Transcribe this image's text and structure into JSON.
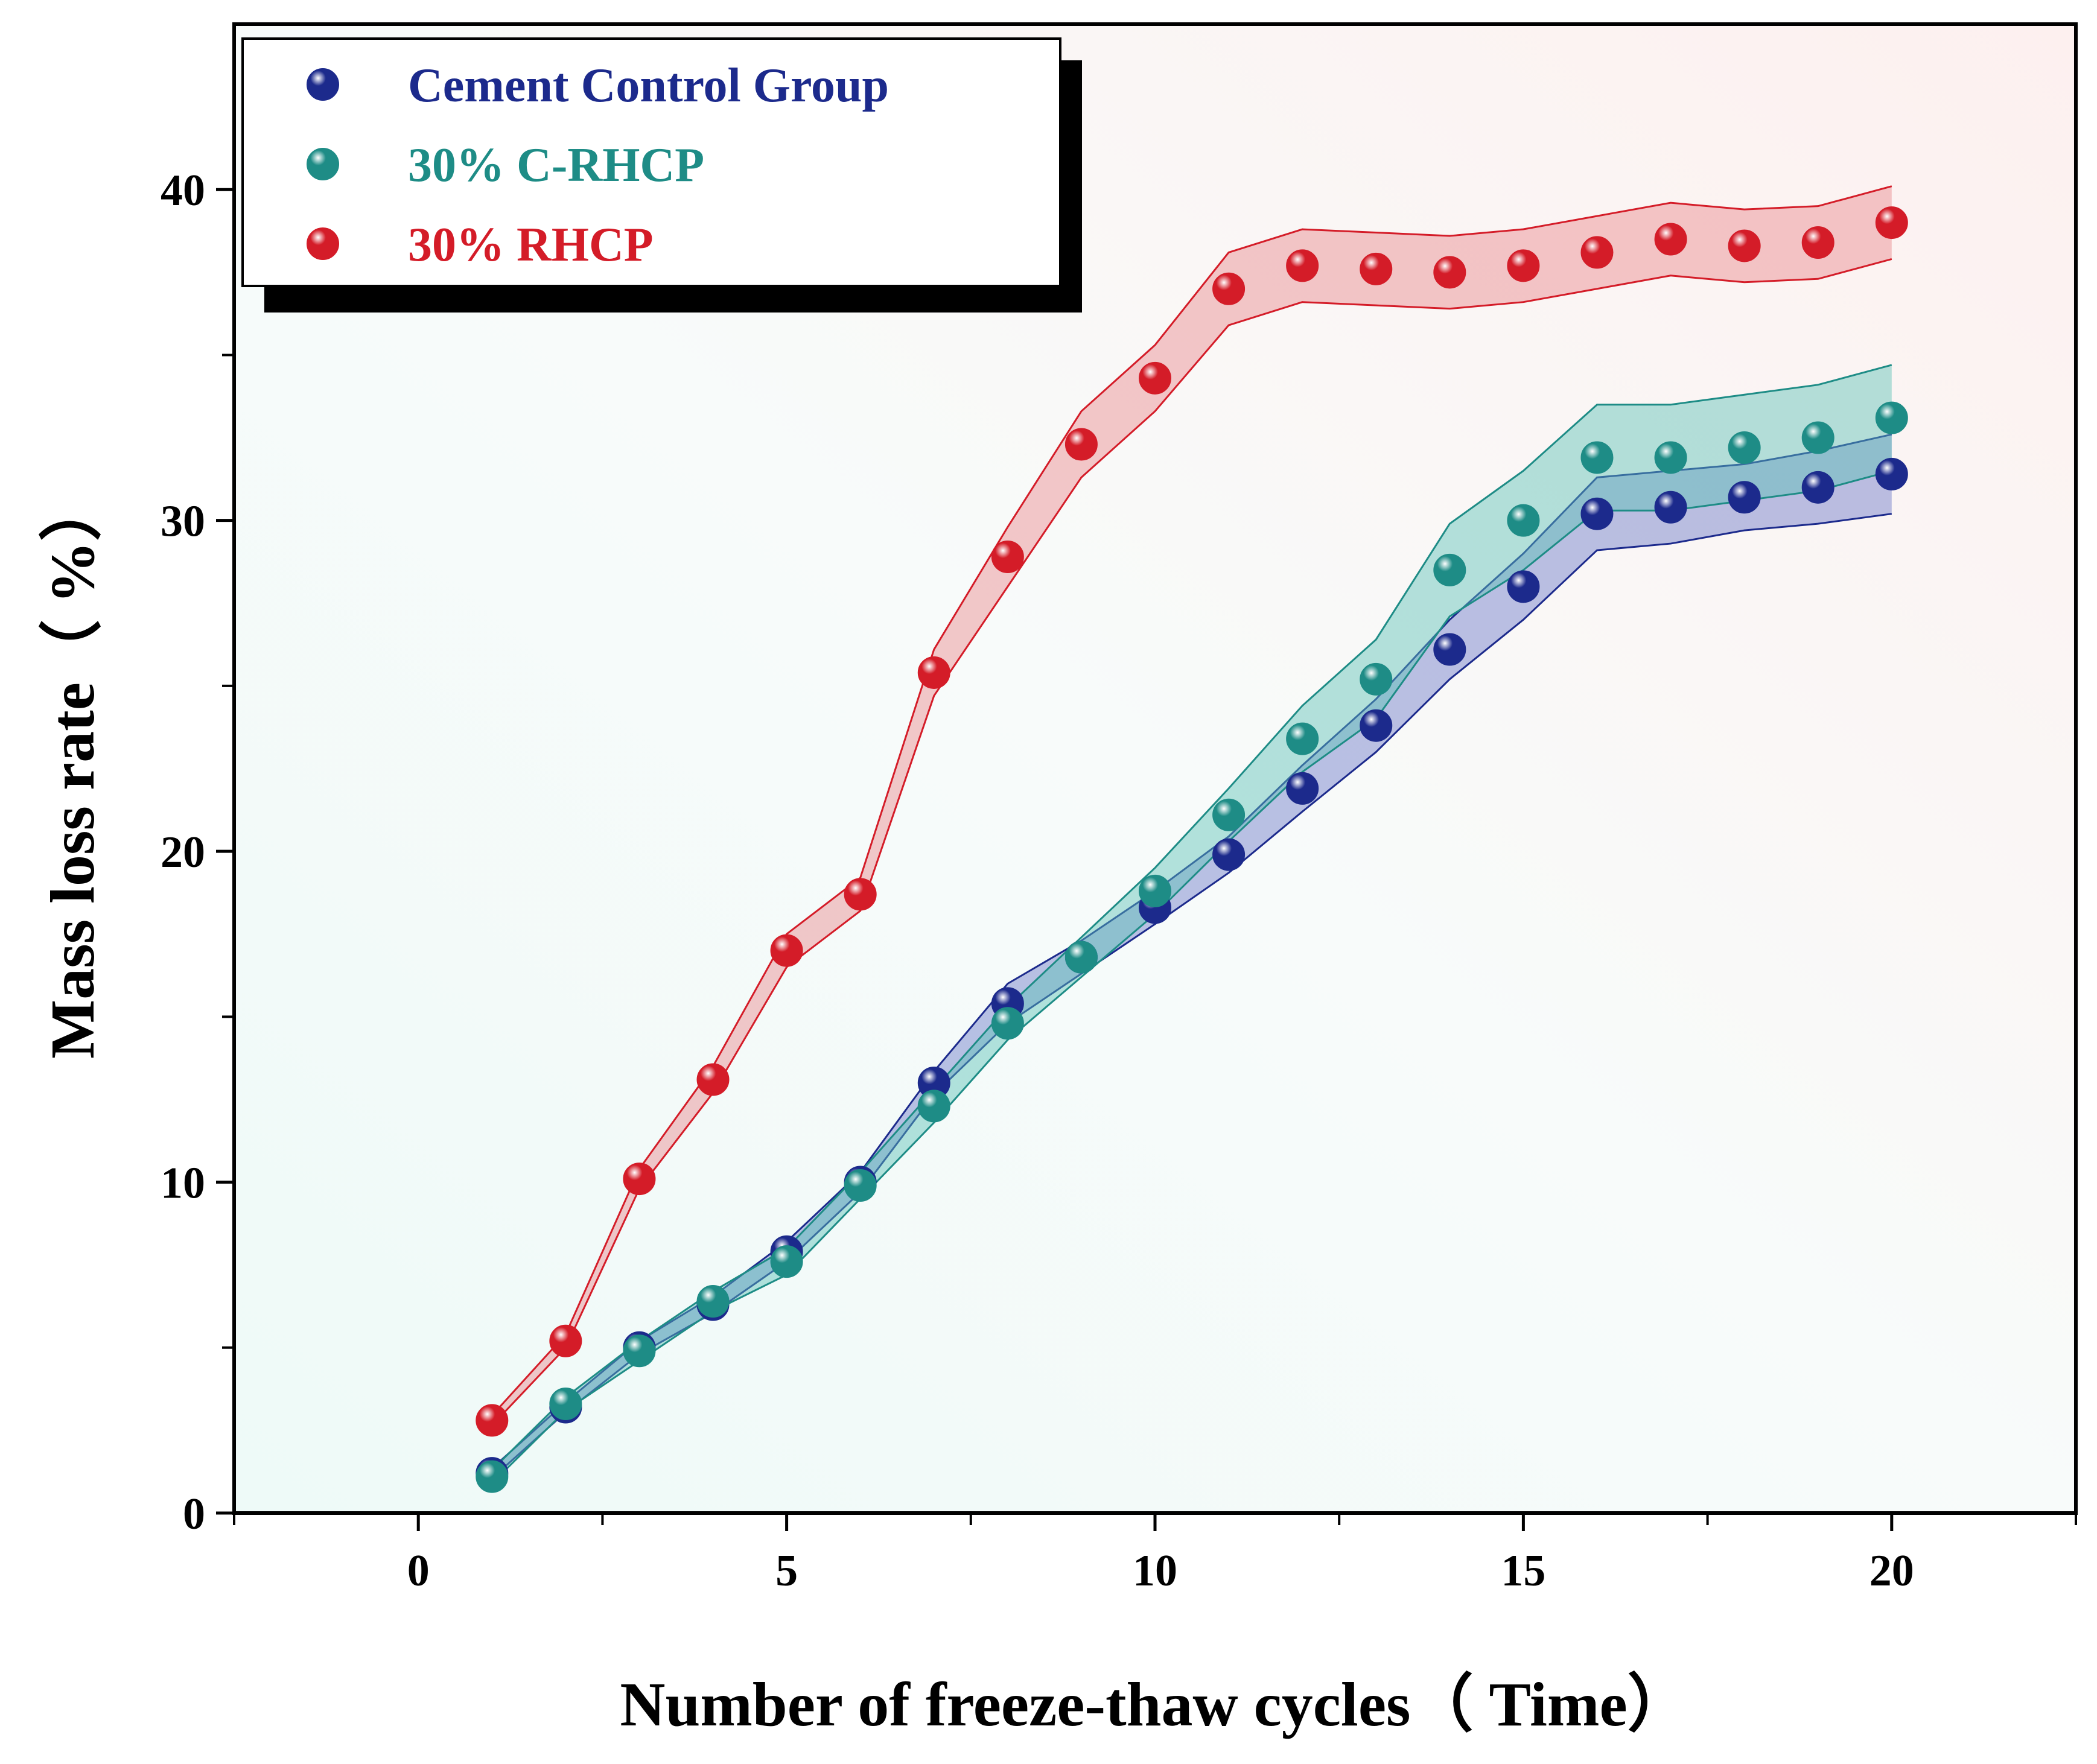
{
  "chart_data": {
    "type": "scatter",
    "title": "",
    "xlabel": "Number of freeze-thaw cycles（ Time）",
    "ylabel": "Mass loss rate（ %）",
    "xlim": [
      -2.5,
      22.5
    ],
    "ylim": [
      0,
      45
    ],
    "x_ticks": [
      0,
      5,
      10,
      15,
      20
    ],
    "y_ticks": [
      0,
      10,
      20,
      30,
      40
    ],
    "grid": false,
    "legend_position": "top-left",
    "x": [
      1,
      2,
      3,
      4,
      5,
      6,
      7,
      8,
      9,
      10,
      11,
      12,
      13,
      14,
      15,
      16,
      17,
      18,
      19,
      20
    ],
    "series": [
      {
        "name": "Cement Control Group",
        "color": "#1c2a8c",
        "band_color": "#6a78c8",
        "values": [
          1.2,
          3.2,
          5.0,
          6.3,
          7.9,
          10.0,
          13.0,
          15.4,
          16.8,
          18.3,
          19.9,
          21.9,
          23.8,
          26.1,
          28.0,
          30.2,
          30.4,
          30.7,
          31.0,
          31.4
        ],
        "band": [
          0.15,
          0.15,
          0.2,
          0.25,
          0.3,
          0.3,
          0.35,
          0.6,
          0.5,
          0.5,
          0.55,
          0.7,
          0.8,
          0.9,
          1.0,
          1.1,
          1.1,
          1.0,
          1.1,
          1.2
        ]
      },
      {
        "name": "30% C-RHCP",
        "color": "#1e8c86",
        "band_color": "#5cc0b6",
        "values": [
          1.1,
          3.3,
          4.9,
          6.4,
          7.6,
          9.9,
          12.3,
          14.8,
          16.8,
          18.8,
          21.1,
          23.4,
          25.2,
          28.5,
          30.0,
          31.9,
          31.9,
          32.2,
          32.5,
          33.1
        ],
        "band": [
          0.2,
          0.2,
          0.3,
          0.3,
          0.4,
          0.4,
          0.5,
          0.5,
          0.6,
          0.7,
          0.8,
          1.0,
          1.2,
          1.4,
          1.5,
          1.6,
          1.6,
          1.6,
          1.6,
          1.6
        ]
      },
      {
        "name": "30% RHCP",
        "color": "#d41c28",
        "band_color": "#e8888c",
        "values": [
          2.8,
          5.2,
          10.1,
          13.1,
          17.0,
          18.7,
          25.4,
          28.9,
          32.3,
          34.3,
          37.0,
          37.7,
          37.6,
          37.5,
          37.7,
          38.1,
          38.5,
          38.3,
          38.4,
          39.0
        ],
        "band": [
          0.15,
          0.2,
          0.3,
          0.4,
          0.5,
          0.5,
          0.7,
          0.9,
          1.0,
          1.0,
          1.1,
          1.1,
          1.1,
          1.1,
          1.1,
          1.1,
          1.1,
          1.1,
          1.1,
          1.1
        ]
      }
    ]
  }
}
